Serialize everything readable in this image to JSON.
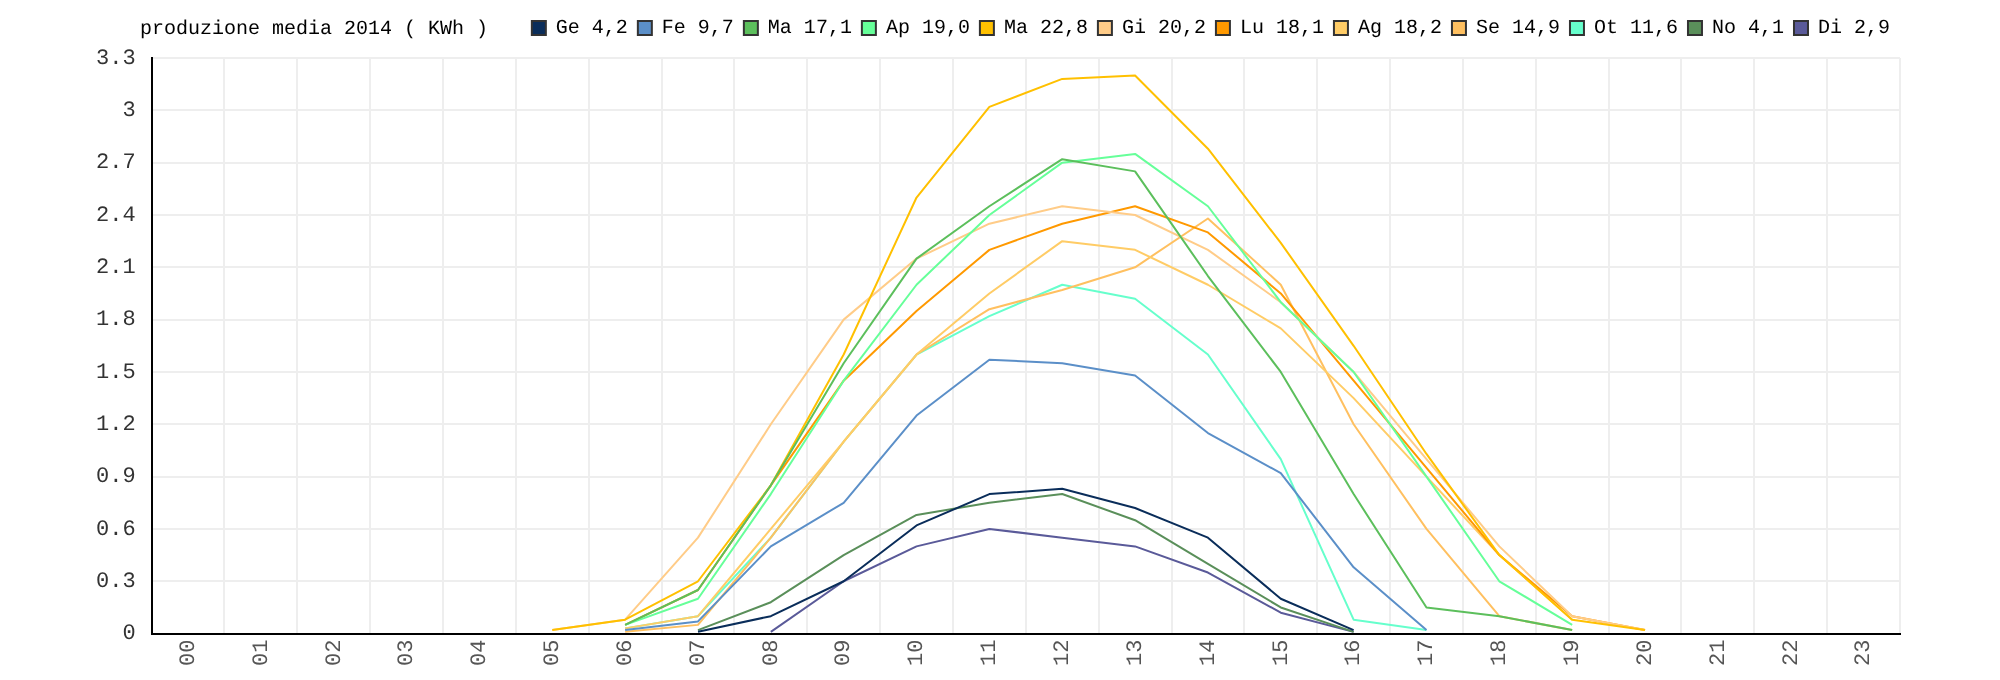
{
  "chart_data": {
    "type": "line",
    "title": "produzione media 2014 ( KWh )",
    "categories": [
      "00",
      "01",
      "02",
      "03",
      "04",
      "05",
      "06",
      "07",
      "08",
      "09",
      "10",
      "11",
      "12",
      "13",
      "14",
      "15",
      "16",
      "17",
      "18",
      "19",
      "20",
      "21",
      "22",
      "23"
    ],
    "series": [
      {
        "name": "Ge 4,2",
        "color": "#0a2d5a",
        "values": [
          null,
          null,
          null,
          null,
          null,
          null,
          null,
          0.01,
          0.1,
          0.3,
          0.62,
          0.8,
          0.83,
          0.72,
          0.55,
          0.2,
          0.02,
          null,
          null,
          null,
          null,
          null,
          null,
          null
        ]
      },
      {
        "name": "Fe 9,7",
        "color": "#5b8fc8",
        "values": [
          null,
          null,
          null,
          null,
          null,
          null,
          0.02,
          0.07,
          0.5,
          0.75,
          1.25,
          1.57,
          1.55,
          1.48,
          1.15,
          0.92,
          0.38,
          0.02,
          null,
          null,
          null,
          null,
          null,
          null
        ]
      },
      {
        "name": "Ma 17,1",
        "color": "#5cbf5c",
        "values": [
          null,
          null,
          null,
          null,
          null,
          null,
          0.05,
          0.25,
          0.85,
          1.55,
          2.15,
          2.45,
          2.72,
          2.65,
          2.05,
          1.5,
          0.8,
          0.15,
          0.1,
          0.02,
          null,
          null,
          null,
          null
        ]
      },
      {
        "name": "Ap 19,0",
        "color": "#66ff99",
        "values": [
          null,
          null,
          null,
          null,
          null,
          null,
          0.05,
          0.2,
          0.8,
          1.45,
          2.0,
          2.4,
          2.7,
          2.75,
          2.45,
          1.9,
          1.5,
          0.9,
          0.3,
          0.05,
          null,
          null,
          null,
          null
        ]
      },
      {
        "name": "Ma 22,8",
        "color": "#ffc000",
        "values": [
          null,
          null,
          null,
          null,
          null,
          0.02,
          0.08,
          0.3,
          0.85,
          1.6,
          2.5,
          3.02,
          3.18,
          3.2,
          2.78,
          2.24,
          1.65,
          1.03,
          0.45,
          0.08,
          0.02,
          null,
          null,
          null
        ]
      },
      {
        "name": "Gi 20,2",
        "color": "#ffcc88",
        "values": [
          null,
          null,
          null,
          null,
          null,
          0.02,
          0.08,
          0.55,
          1.2,
          1.8,
          2.15,
          2.35,
          2.45,
          2.4,
          2.2,
          1.9,
          1.5,
          1.0,
          0.5,
          0.1,
          0.02,
          null,
          null,
          null
        ]
      },
      {
        "name": "Lu 18,1",
        "color": "#ff9900",
        "values": [
          null,
          null,
          null,
          null,
          null,
          null,
          0.05,
          0.25,
          0.85,
          1.45,
          1.85,
          2.2,
          2.35,
          2.45,
          2.3,
          1.95,
          1.45,
          0.95,
          0.45,
          0.1,
          0.02,
          null,
          null,
          null
        ]
      },
      {
        "name": "Ag 18,2",
        "color": "#ffcc66",
        "values": [
          null,
          null,
          null,
          null,
          null,
          null,
          0.03,
          0.1,
          0.6,
          1.1,
          1.6,
          1.95,
          2.25,
          2.2,
          2.0,
          1.75,
          1.35,
          0.9,
          0.45,
          0.08,
          null,
          null,
          null,
          null
        ]
      },
      {
        "name": "Se 14,9",
        "color": "#ffc060",
        "values": [
          null,
          null,
          null,
          null,
          null,
          null,
          0.01,
          0.05,
          0.55,
          1.1,
          1.6,
          1.86,
          1.97,
          2.1,
          2.38,
          2.0,
          1.2,
          0.6,
          0.1,
          0.02,
          null,
          null,
          null,
          null
        ]
      },
      {
        "name": "Ot 11,6",
        "color": "#66ffcc",
        "values": [
          null,
          null,
          null,
          null,
          null,
          null,
          0.03,
          0.1,
          0.55,
          1.1,
          1.6,
          1.82,
          2.0,
          1.92,
          1.6,
          1.0,
          0.08,
          0.02,
          null,
          null,
          null,
          null,
          null,
          null
        ]
      },
      {
        "name": "No 4,1",
        "color": "#5a8f5a",
        "values": [
          null,
          null,
          null,
          null,
          null,
          null,
          null,
          0.02,
          0.18,
          0.45,
          0.68,
          0.75,
          0.8,
          0.65,
          0.4,
          0.15,
          0.01,
          null,
          null,
          null,
          null,
          null,
          null,
          null
        ]
      },
      {
        "name": "Di 2,9",
        "color": "#5a5a99",
        "values": [
          null,
          null,
          null,
          null,
          null,
          null,
          null,
          null,
          0.01,
          0.3,
          0.5,
          0.6,
          0.55,
          0.5,
          0.35,
          0.12,
          0.01,
          null,
          null,
          null,
          null,
          null,
          null,
          null
        ]
      }
    ],
    "ylim": [
      0,
      3.3
    ],
    "yticks": [
      0,
      0.3,
      0.6,
      0.9,
      1.2,
      1.5,
      1.8,
      2.1,
      2.4,
      2.7,
      3,
      3.3
    ],
    "grid": true,
    "legend": "top right",
    "marker": "none",
    "line_style": "solid"
  }
}
